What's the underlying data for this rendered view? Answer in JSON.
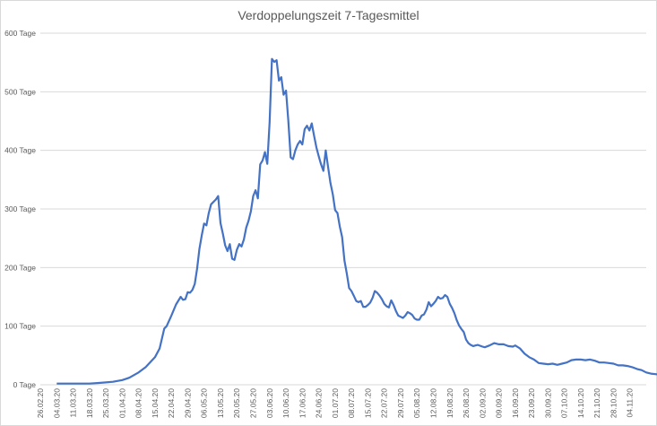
{
  "chart_data": {
    "type": "line",
    "title": "Verdoppelungszeit 7-Tagesmittel",
    "xlabel": "",
    "ylabel": "",
    "grid": true,
    "legend": "none",
    "colors": {
      "line": "#4472c4",
      "grid": "#d9d9d9",
      "text": "#595959"
    },
    "ylim": [
      0,
      600
    ],
    "y_ticks": [
      {
        "value": 0,
        "label": "0 Tage"
      },
      {
        "value": 100,
        "label": "100 Tage"
      },
      {
        "value": 200,
        "label": "200 Tage"
      },
      {
        "value": 300,
        "label": "300 Tage"
      },
      {
        "value": 400,
        "label": "400 Tage"
      },
      {
        "value": 500,
        "label": "500 Tage"
      },
      {
        "value": 600,
        "label": "600 Tage"
      }
    ],
    "x_ticks": [
      "26.02.20",
      "04.03.20",
      "11.03.20",
      "18.03.20",
      "25.03.20",
      "01.04.20",
      "08.04.20",
      "15.04.20",
      "22.04.20",
      "29.04.20",
      "06.05.20",
      "13.05.20",
      "20.05.20",
      "27.05.20",
      "03.06.20",
      "10.06.20",
      "17.06.20",
      "24.06.20",
      "01.07.20",
      "08.07.20",
      "15.07.20",
      "22.07.20",
      "29.07.20",
      "05.08.20",
      "12.08.20",
      "19.08.20",
      "26.08.20",
      "02.09.20",
      "09.09.20",
      "16.09.20",
      "23.09.20",
      "30.09.20",
      "07.10.20",
      "14.10.20",
      "21.10.20",
      "28.10.20",
      "04.11.20"
    ],
    "x_start": "26.02.20",
    "series": [
      {
        "name": "",
        "points": [
          [
            "04.03.20",
            2
          ],
          [
            "11.03.20",
            2
          ],
          [
            "18.03.20",
            2
          ],
          [
            "22.03.20",
            3
          ],
          [
            "25.03.20",
            4
          ],
          [
            "28.03.20",
            5
          ],
          [
            "01.04.20",
            8
          ],
          [
            "04.04.20",
            12
          ],
          [
            "08.04.20",
            21
          ],
          [
            "11.04.20",
            30
          ],
          [
            "15.04.20",
            47
          ],
          [
            "17.04.20",
            62
          ],
          [
            "19.04.20",
            96
          ],
          [
            "20.04.20",
            100
          ],
          [
            "22.04.20",
            118
          ],
          [
            "24.04.20",
            137
          ],
          [
            "26.04.20",
            150
          ],
          [
            "27.04.20",
            145
          ],
          [
            "28.04.20",
            146
          ],
          [
            "29.04.20",
            158
          ],
          [
            "30.04.20",
            157
          ],
          [
            "01.05.20",
            162
          ],
          [
            "02.05.20",
            172
          ],
          [
            "03.05.20",
            198
          ],
          [
            "04.05.20",
            232
          ],
          [
            "05.05.20",
            255
          ],
          [
            "06.05.20",
            275
          ],
          [
            "07.05.20",
            272
          ],
          [
            "08.05.20",
            293
          ],
          [
            "09.05.20",
            308
          ],
          [
            "10.05.20",
            312
          ],
          [
            "11.05.20",
            316
          ],
          [
            "12.05.20",
            322
          ],
          [
            "13.05.20",
            276
          ],
          [
            "14.05.20",
            258
          ],
          [
            "15.05.20",
            238
          ],
          [
            "16.05.20",
            228
          ],
          [
            "17.05.20",
            240
          ],
          [
            "18.05.20",
            215
          ],
          [
            "19.05.20",
            213
          ],
          [
            "20.05.20",
            230
          ],
          [
            "21.05.20",
            240
          ],
          [
            "22.05.20",
            236
          ],
          [
            "23.05.20",
            248
          ],
          [
            "24.05.20",
            268
          ],
          [
            "25.05.20",
            280
          ],
          [
            "26.05.20",
            296
          ],
          [
            "27.05.20",
            322
          ],
          [
            "28.05.20",
            332
          ],
          [
            "29.05.20",
            318
          ],
          [
            "30.05.20",
            376
          ],
          [
            "31.05.20",
            383
          ],
          [
            "01.06.20",
            397
          ],
          [
            "02.06.20",
            377
          ],
          [
            "03.06.20",
            448
          ],
          [
            "04.06.20",
            556
          ],
          [
            "05.06.20",
            551
          ],
          [
            "06.06.20",
            554
          ],
          [
            "07.06.20",
            519
          ],
          [
            "08.06.20",
            525
          ],
          [
            "09.06.20",
            495
          ],
          [
            "10.06.20",
            502
          ],
          [
            "11.06.20",
            450
          ],
          [
            "12.06.20",
            388
          ],
          [
            "13.06.20",
            385
          ],
          [
            "14.06.20",
            400
          ],
          [
            "15.06.20",
            410
          ],
          [
            "16.06.20",
            416
          ],
          [
            "17.06.20",
            410
          ],
          [
            "18.06.20",
            436
          ],
          [
            "19.06.20",
            442
          ],
          [
            "20.06.20",
            434
          ],
          [
            "21.06.20",
            446
          ],
          [
            "22.06.20",
            425
          ],
          [
            "23.06.20",
            405
          ],
          [
            "24.06.20",
            390
          ],
          [
            "25.06.20",
            376
          ],
          [
            "26.06.20",
            365
          ],
          [
            "27.06.20",
            400
          ],
          [
            "28.06.20",
            372
          ],
          [
            "29.06.20",
            345
          ],
          [
            "30.06.20",
            325
          ],
          [
            "01.07.20",
            298
          ],
          [
            "02.07.20",
            293
          ],
          [
            "03.07.20",
            270
          ],
          [
            "04.07.20",
            252
          ],
          [
            "05.07.20",
            212
          ],
          [
            "06.07.20",
            190
          ],
          [
            "07.07.20",
            165
          ],
          [
            "08.07.20",
            160
          ],
          [
            "09.07.20",
            152
          ],
          [
            "10.07.20",
            143
          ],
          [
            "11.07.20",
            141
          ],
          [
            "12.07.20",
            143
          ],
          [
            "13.07.20",
            133
          ],
          [
            "14.07.20",
            133
          ],
          [
            "15.07.20",
            136
          ],
          [
            "16.07.20",
            140
          ],
          [
            "17.07.20",
            148
          ],
          [
            "18.07.20",
            160
          ],
          [
            "19.07.20",
            157
          ],
          [
            "20.07.20",
            152
          ],
          [
            "21.07.20",
            146
          ],
          [
            "22.07.20",
            138
          ],
          [
            "23.07.20",
            134
          ],
          [
            "24.07.20",
            132
          ],
          [
            "25.07.20",
            144
          ],
          [
            "26.07.20",
            136
          ],
          [
            "27.07.20",
            126
          ],
          [
            "28.07.20",
            118
          ],
          [
            "29.07.20",
            116
          ],
          [
            "30.07.20",
            114
          ],
          [
            "31.07.20",
            118
          ],
          [
            "01.08.20",
            124
          ],
          [
            "02.08.20",
            122
          ],
          [
            "03.08.20",
            119
          ],
          [
            "04.08.20",
            113
          ],
          [
            "05.08.20",
            111
          ],
          [
            "06.08.20",
            111
          ],
          [
            "07.08.20",
            118
          ],
          [
            "08.08.20",
            120
          ],
          [
            "09.08.20",
            128
          ],
          [
            "10.08.20",
            141
          ],
          [
            "11.08.20",
            134
          ],
          [
            "12.08.20",
            138
          ],
          [
            "13.08.20",
            143
          ],
          [
            "14.08.20",
            150
          ],
          [
            "15.08.20",
            147
          ],
          [
            "16.08.20",
            148
          ],
          [
            "17.08.20",
            153
          ],
          [
            "18.08.20",
            150
          ],
          [
            "19.08.20",
            138
          ],
          [
            "20.08.20",
            131
          ],
          [
            "21.08.20",
            122
          ],
          [
            "22.08.20",
            110
          ],
          [
            "23.08.20",
            101
          ],
          [
            "24.08.20",
            95
          ],
          [
            "25.08.20",
            90
          ],
          [
            "26.08.20",
            77
          ],
          [
            "27.08.20",
            71
          ],
          [
            "28.08.20",
            68
          ],
          [
            "29.08.20",
            66
          ],
          [
            "30.08.20",
            67
          ],
          [
            "31.08.20",
            68
          ],
          [
            "02.09.20",
            65
          ],
          [
            "03.09.20",
            64
          ],
          [
            "05.09.20",
            67
          ],
          [
            "07.09.20",
            71
          ],
          [
            "09.09.20",
            69
          ],
          [
            "11.09.20",
            69
          ],
          [
            "13.09.20",
            66
          ],
          [
            "15.09.20",
            65
          ],
          [
            "16.09.20",
            67
          ],
          [
            "18.09.20",
            62
          ],
          [
            "20.09.20",
            53
          ],
          [
            "22.09.20",
            47
          ],
          [
            "24.09.20",
            43
          ],
          [
            "26.09.20",
            37
          ],
          [
            "28.09.20",
            36
          ],
          [
            "30.09.20",
            35
          ],
          [
            "02.10.20",
            36
          ],
          [
            "04.10.20",
            34
          ],
          [
            "06.10.20",
            36
          ],
          [
            "08.10.20",
            38
          ],
          [
            "10.10.20",
            42
          ],
          [
            "12.10.20",
            43
          ],
          [
            "14.10.20",
            43
          ],
          [
            "16.10.20",
            42
          ],
          [
            "18.10.20",
            43
          ],
          [
            "20.10.20",
            41
          ],
          [
            "22.10.20",
            38
          ],
          [
            "24.10.20",
            38
          ],
          [
            "26.10.20",
            37
          ],
          [
            "28.10.20",
            36
          ],
          [
            "30.10.20",
            33
          ],
          [
            "01.11.20",
            33
          ],
          [
            "03.11.20",
            32
          ],
          [
            "05.11.20",
            30
          ],
          [
            "07.11.20",
            27
          ],
          [
            "09.11.20",
            25
          ],
          [
            "11.11.20",
            21
          ],
          [
            "13.11.20",
            19
          ],
          [
            "15.11.20",
            18
          ],
          [
            "17.11.20",
            17
          ],
          [
            "18.11.20",
            15
          ],
          [
            "20.11.20",
            14
          ],
          [
            "21.11.20",
            14
          ]
        ]
      }
    ]
  }
}
